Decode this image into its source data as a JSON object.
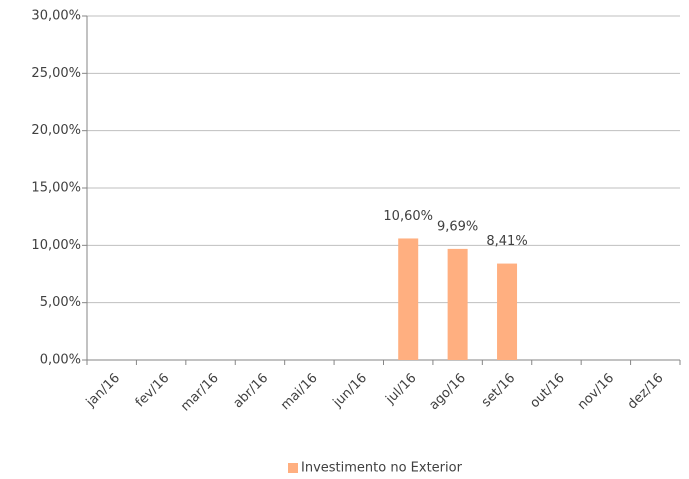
{
  "chart_data": {
    "type": "bar",
    "categories": [
      "jan/16",
      "fev/16",
      "mar/16",
      "abr/16",
      "mai/16",
      "jun/16",
      "jul/16",
      "ago/16",
      "set/16",
      "out/16",
      "nov/16",
      "dez/16"
    ],
    "series": [
      {
        "name": "Investimento no Exterior",
        "color": "#ffaf80",
        "values": [
          null,
          null,
          null,
          null,
          null,
          null,
          10.6,
          9.69,
          8.41,
          null,
          null,
          null
        ],
        "value_labels": [
          null,
          null,
          null,
          null,
          null,
          null,
          "10,60%",
          "9,69%",
          "8,41%",
          null,
          null,
          null
        ]
      }
    ],
    "ylim": [
      0,
      30
    ],
    "yticks": [
      {
        "value": 0,
        "label": "0,00%"
      },
      {
        "value": 5,
        "label": "5,00%"
      },
      {
        "value": 10,
        "label": "10,00%"
      },
      {
        "value": 15,
        "label": "15,00%"
      },
      {
        "value": 20,
        "label": "20,00%"
      },
      {
        "value": 25,
        "label": "25,00%"
      },
      {
        "value": 30,
        "label": "30,00%"
      }
    ],
    "grid": true,
    "legend": "bottom"
  }
}
